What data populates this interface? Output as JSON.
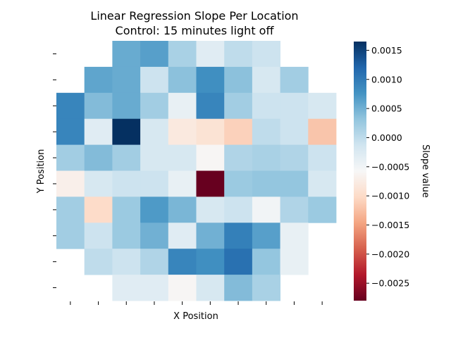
{
  "chart_data": {
    "type": "heatmap",
    "title": "Linear Regression Slope Per Location",
    "subtitle": "Control: 15 minutes light off",
    "xlabel": "X Position",
    "ylabel": "Y Position",
    "colorbar": {
      "label": "Slope value",
      "min": -0.0028,
      "max": 0.00165,
      "ticks": [
        0.0015,
        0.001,
        0.0005,
        0.0,
        -0.0005,
        -0.001,
        -0.0015,
        -0.002,
        -0.0025
      ],
      "tick_labels": [
        "0.0015",
        "0.0010",
        "0.0005",
        "0.0000",
        "−0.0005",
        "−0.0010",
        "−0.0015",
        "−0.0020",
        "−0.0025"
      ],
      "colormap": "RdBu",
      "placement": "right"
    },
    "x_tick_labels": [
      "",
      "",
      "",
      "",
      "",
      "",
      "",
      "",
      "",
      ""
    ],
    "y_tick_labels": [
      "",
      "",
      "",
      "",
      "",
      "",
      "",
      "",
      "",
      ""
    ],
    "rows": 10,
    "cols": 10,
    "values": [
      [
        null,
        null,
        0.00055,
        0.00065,
        0.00015,
        -0.0003,
        0.0,
        -0.0001,
        null,
        null
      ],
      [
        null,
        0.0006,
        0.00055,
        -0.0001,
        0.00035,
        0.0008,
        0.00035,
        -0.0002,
        0.0002,
        null
      ],
      [
        0.0009,
        0.0004,
        0.00055,
        0.0002,
        -0.0004,
        0.0009,
        0.0002,
        -0.0001,
        -0.0001,
        -0.0002
      ],
      [
        0.0009,
        -0.0003,
        0.00165,
        -0.0002,
        -0.0008,
        -0.0009,
        -0.0011,
        0.0,
        -0.0001,
        -0.0012
      ],
      [
        0.0002,
        0.0004,
        0.0002,
        -0.0002,
        -0.0002,
        -0.0006,
        0.0001,
        0.00015,
        0.0001,
        -0.0001
      ],
      [
        -0.0007,
        -0.0002,
        -0.0001,
        -0.0001,
        -0.0004,
        -0.0028,
        0.00025,
        0.0003,
        0.0003,
        -0.0002
      ],
      [
        0.0002,
        -0.001,
        0.00025,
        0.0007,
        0.00045,
        -0.0002,
        -0.0001,
        -0.0005,
        0.0001,
        0.00025
      ],
      [
        0.0002,
        -0.0001,
        0.00025,
        0.0005,
        -0.0003,
        0.0005,
        0.00095,
        0.00065,
        -0.0004,
        null
      ],
      [
        null,
        0.0,
        -0.0001,
        0.0001,
        0.0009,
        0.0008,
        0.0011,
        0.0003,
        -0.0004,
        null
      ],
      [
        null,
        null,
        -0.0003,
        -0.0003,
        -0.0006,
        -0.0002,
        0.0004,
        0.00015,
        null,
        null
      ]
    ]
  }
}
